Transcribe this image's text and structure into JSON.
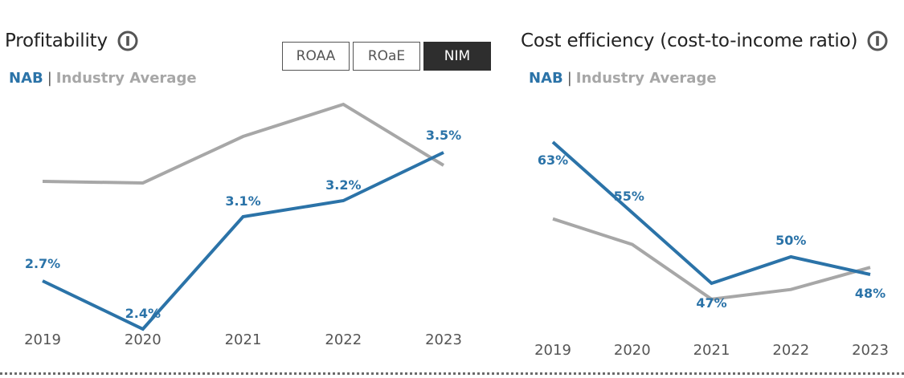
{
  "left_panel": {
    "title": "Profitability",
    "info_icon": "info-icon",
    "legend": {
      "nab": "NAB",
      "separator": "|",
      "industry": "Industry Average"
    },
    "toggles": [
      {
        "label": "ROAA",
        "active": false
      },
      {
        "label": "ROaE",
        "active": false
      },
      {
        "label": "NIM",
        "active": true
      }
    ]
  },
  "right_panel": {
    "title": "Cost efficiency (cost-to-income ratio)",
    "info_icon": "info-icon",
    "legend": {
      "nab": "NAB",
      "separator": "|",
      "industry": "Industry Average"
    }
  },
  "colors": {
    "nab": "#2b73a8",
    "industry": "#a7a7a7",
    "active_toggle": "#2e2e2e"
  },
  "chart_data": [
    {
      "type": "line",
      "title": "Profitability",
      "metric": "NIM",
      "categories": [
        "2019",
        "2020",
        "2021",
        "2022",
        "2023"
      ],
      "series": [
        {
          "name": "NAB",
          "values": [
            2.7,
            2.4,
            3.1,
            3.2,
            3.5
          ],
          "labels": [
            "2.7%",
            "2.4%",
            "3.1%",
            "3.2%",
            "3.5%"
          ]
        },
        {
          "name": "Industry Average",
          "values": [
            3.32,
            3.31,
            3.6,
            3.8,
            3.42
          ]
        }
      ],
      "ylim": [
        2.3,
        3.95
      ],
      "grid": false,
      "legend": "top-left"
    },
    {
      "type": "line",
      "title": "Cost efficiency (cost-to-income ratio)",
      "categories": [
        "2019",
        "2020",
        "2021",
        "2022",
        "2023"
      ],
      "series": [
        {
          "name": "NAB",
          "values": [
            63,
            55,
            47,
            50,
            48
          ],
          "labels": [
            "63%",
            "55%",
            "47%",
            "50%",
            "48%"
          ]
        },
        {
          "name": "Industry Average",
          "values": [
            54.3,
            51.4,
            45.2,
            46.3,
            48.8
          ]
        }
      ],
      "ylim": [
        40,
        70
      ],
      "grid": false,
      "legend": "top-left"
    }
  ]
}
